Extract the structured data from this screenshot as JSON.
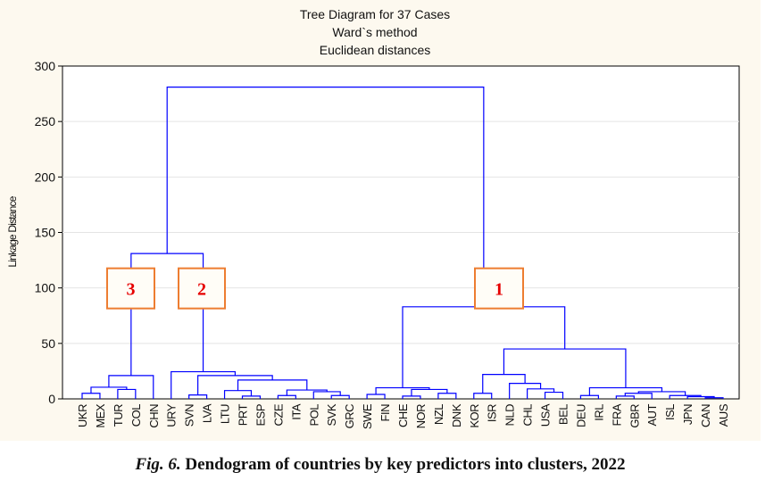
{
  "caption": {
    "prefix": "Fig. 6.",
    "text": " Dendogram of countries by key predictors into clusters, 2022"
  },
  "chart_data": {
    "type": "dendrogram",
    "title": "Tree Diagram for 37 Cases",
    "subtitle1": "Ward`s method",
    "subtitle2": "Euclidean distances",
    "xlabel": "",
    "ylabel": "Linkage Distance",
    "ylim": [
      0,
      300
    ],
    "yticks": [
      0,
      50,
      100,
      150,
      200,
      250,
      300
    ],
    "grid": true,
    "line_color": "#0000ff",
    "leaves": [
      "UKR",
      "MEX",
      "TUR",
      "COL",
      "CHN",
      "URY",
      "SVN",
      "LVA",
      "LTU",
      "PRT",
      "ESP",
      "CZE",
      "ITA",
      "POL",
      "SVK",
      "GRC",
      "SWE",
      "FIN",
      "CHE",
      "NOR",
      "NZL",
      "DNK",
      "KOR",
      "ISR",
      "NLD",
      "CHL",
      "USA",
      "BEL",
      "DEU",
      "IRL",
      "FRA",
      "GBR",
      "AUT",
      "ISL",
      "JPN",
      "CAN",
      "AUS"
    ],
    "merges_note": "each merge: [left, right, height]; indices < 37 are leaves, >= 37 refer to merge index + 37",
    "merges": [
      [
        35,
        36,
        1
      ],
      [
        34,
        37,
        2
      ],
      [
        33,
        38,
        3
      ],
      [
        30,
        31,
        2.5
      ],
      [
        40,
        32,
        5
      ],
      [
        41,
        39,
        6.5
      ],
      [
        28,
        29,
        3
      ],
      [
        43,
        42,
        10
      ],
      [
        26,
        27,
        6
      ],
      [
        25,
        45,
        9
      ],
      [
        24,
        46,
        14
      ],
      [
        22,
        23,
        5
      ],
      [
        48,
        47,
        22
      ],
      [
        49,
        44,
        45
      ],
      [
        18,
        19,
        2.5
      ],
      [
        20,
        21,
        5
      ],
      [
        51,
        52,
        8.5
      ],
      [
        16,
        17,
        4
      ],
      [
        54,
        53,
        10
      ],
      [
        55,
        50,
        83
      ],
      [
        9,
        10,
        2.5
      ],
      [
        8,
        57,
        7.5
      ],
      [
        11,
        12,
        3
      ],
      [
        14,
        15,
        3
      ],
      [
        13,
        60,
        6.5
      ],
      [
        59,
        61,
        8
      ],
      [
        58,
        62,
        17
      ],
      [
        6,
        7,
        3.5
      ],
      [
        64,
        63,
        21
      ],
      [
        5,
        65,
        24.5
      ],
      [
        0,
        1,
        5
      ],
      [
        2,
        3,
        8.5
      ],
      [
        67,
        68,
        10.5
      ],
      [
        69,
        4,
        21
      ],
      [
        70,
        66,
        131
      ],
      [
        71,
        56,
        281
      ]
    ],
    "annotations": [
      {
        "label": "3",
        "cluster": [
          "UKR",
          "MEX",
          "TUR",
          "COL",
          "CHN"
        ],
        "at_distance": 100
      },
      {
        "label": "2",
        "cluster": [
          "URY",
          "SVN",
          "LVA",
          "LTU",
          "PRT",
          "ESP",
          "CZE",
          "ITA",
          "POL",
          "SVK",
          "GRC"
        ],
        "at_distance": 100
      },
      {
        "label": "1",
        "cluster": [
          "SWE",
          "FIN",
          "CHE",
          "NOR",
          "NZL",
          "DNK",
          "KOR",
          "ISR",
          "NLD",
          "CHL",
          "USA",
          "BEL",
          "DEU",
          "IRL",
          "FRA",
          "GBR",
          "AUT",
          "ISL",
          "JPN",
          "CAN",
          "AUS"
        ],
        "at_distance": 100
      }
    ],
    "annotation_style": {
      "border": "#ed7d31",
      "text": "#e60000"
    }
  }
}
